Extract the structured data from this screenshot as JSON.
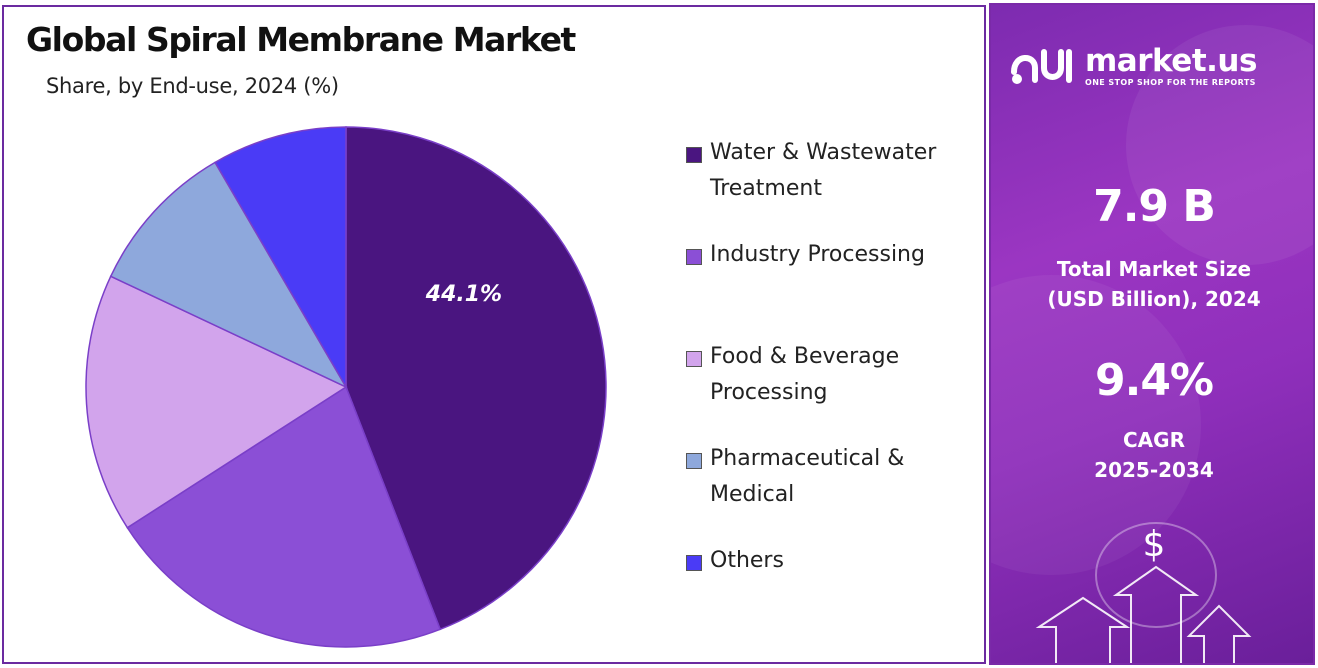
{
  "header": {
    "title": "Global Spiral Membrane Market",
    "subtitle": "Share, by End-use, 2024 (%)"
  },
  "chart_data": {
    "type": "pie",
    "title": "Global Spiral Membrane Market",
    "subtitle": "Share, by End-use, 2024 (%)",
    "unit": "%",
    "legend_position": "right",
    "categories": [
      "Water & Wastewater Treatment",
      "Industry Processing",
      "Food & Beverage Processing",
      "Pharmaceutical & Medical",
      "Others"
    ],
    "values": [
      44.1,
      21.8,
      16.1,
      9.6,
      8.4
    ],
    "colors": [
      "#4a1580",
      "#8b4fd6",
      "#d2a4ec",
      "#8ea8dc",
      "#4a3bf6"
    ],
    "data_labels": [
      "44.1%",
      "",
      "",
      "",
      ""
    ],
    "legend": [
      {
        "label": "Water & Wastewater Treatment",
        "color": "#4a1580"
      },
      {
        "label": "Industry Processing",
        "color": "#8b4fd6"
      },
      {
        "label": "Food & Beverage Processing",
        "color": "#d2a4ec"
      },
      {
        "label": "Pharmaceutical & Medical",
        "color": "#8ea8dc"
      },
      {
        "label": "Others",
        "color": "#4a3bf6"
      }
    ]
  },
  "sidebar": {
    "brand_name": "market.us",
    "brand_tagline": "ONE STOP SHOP FOR THE REPORTS",
    "market_size_value": "7.9 B",
    "market_size_label_line1": "Total Market Size",
    "market_size_label_line2": "(USD Billion), 2024",
    "cagr_value": "9.4%",
    "cagr_label_line1": "CAGR",
    "cagr_label_line2": "2025-2034",
    "decor_symbol": "$",
    "accent_color": "#8f2fbb"
  }
}
